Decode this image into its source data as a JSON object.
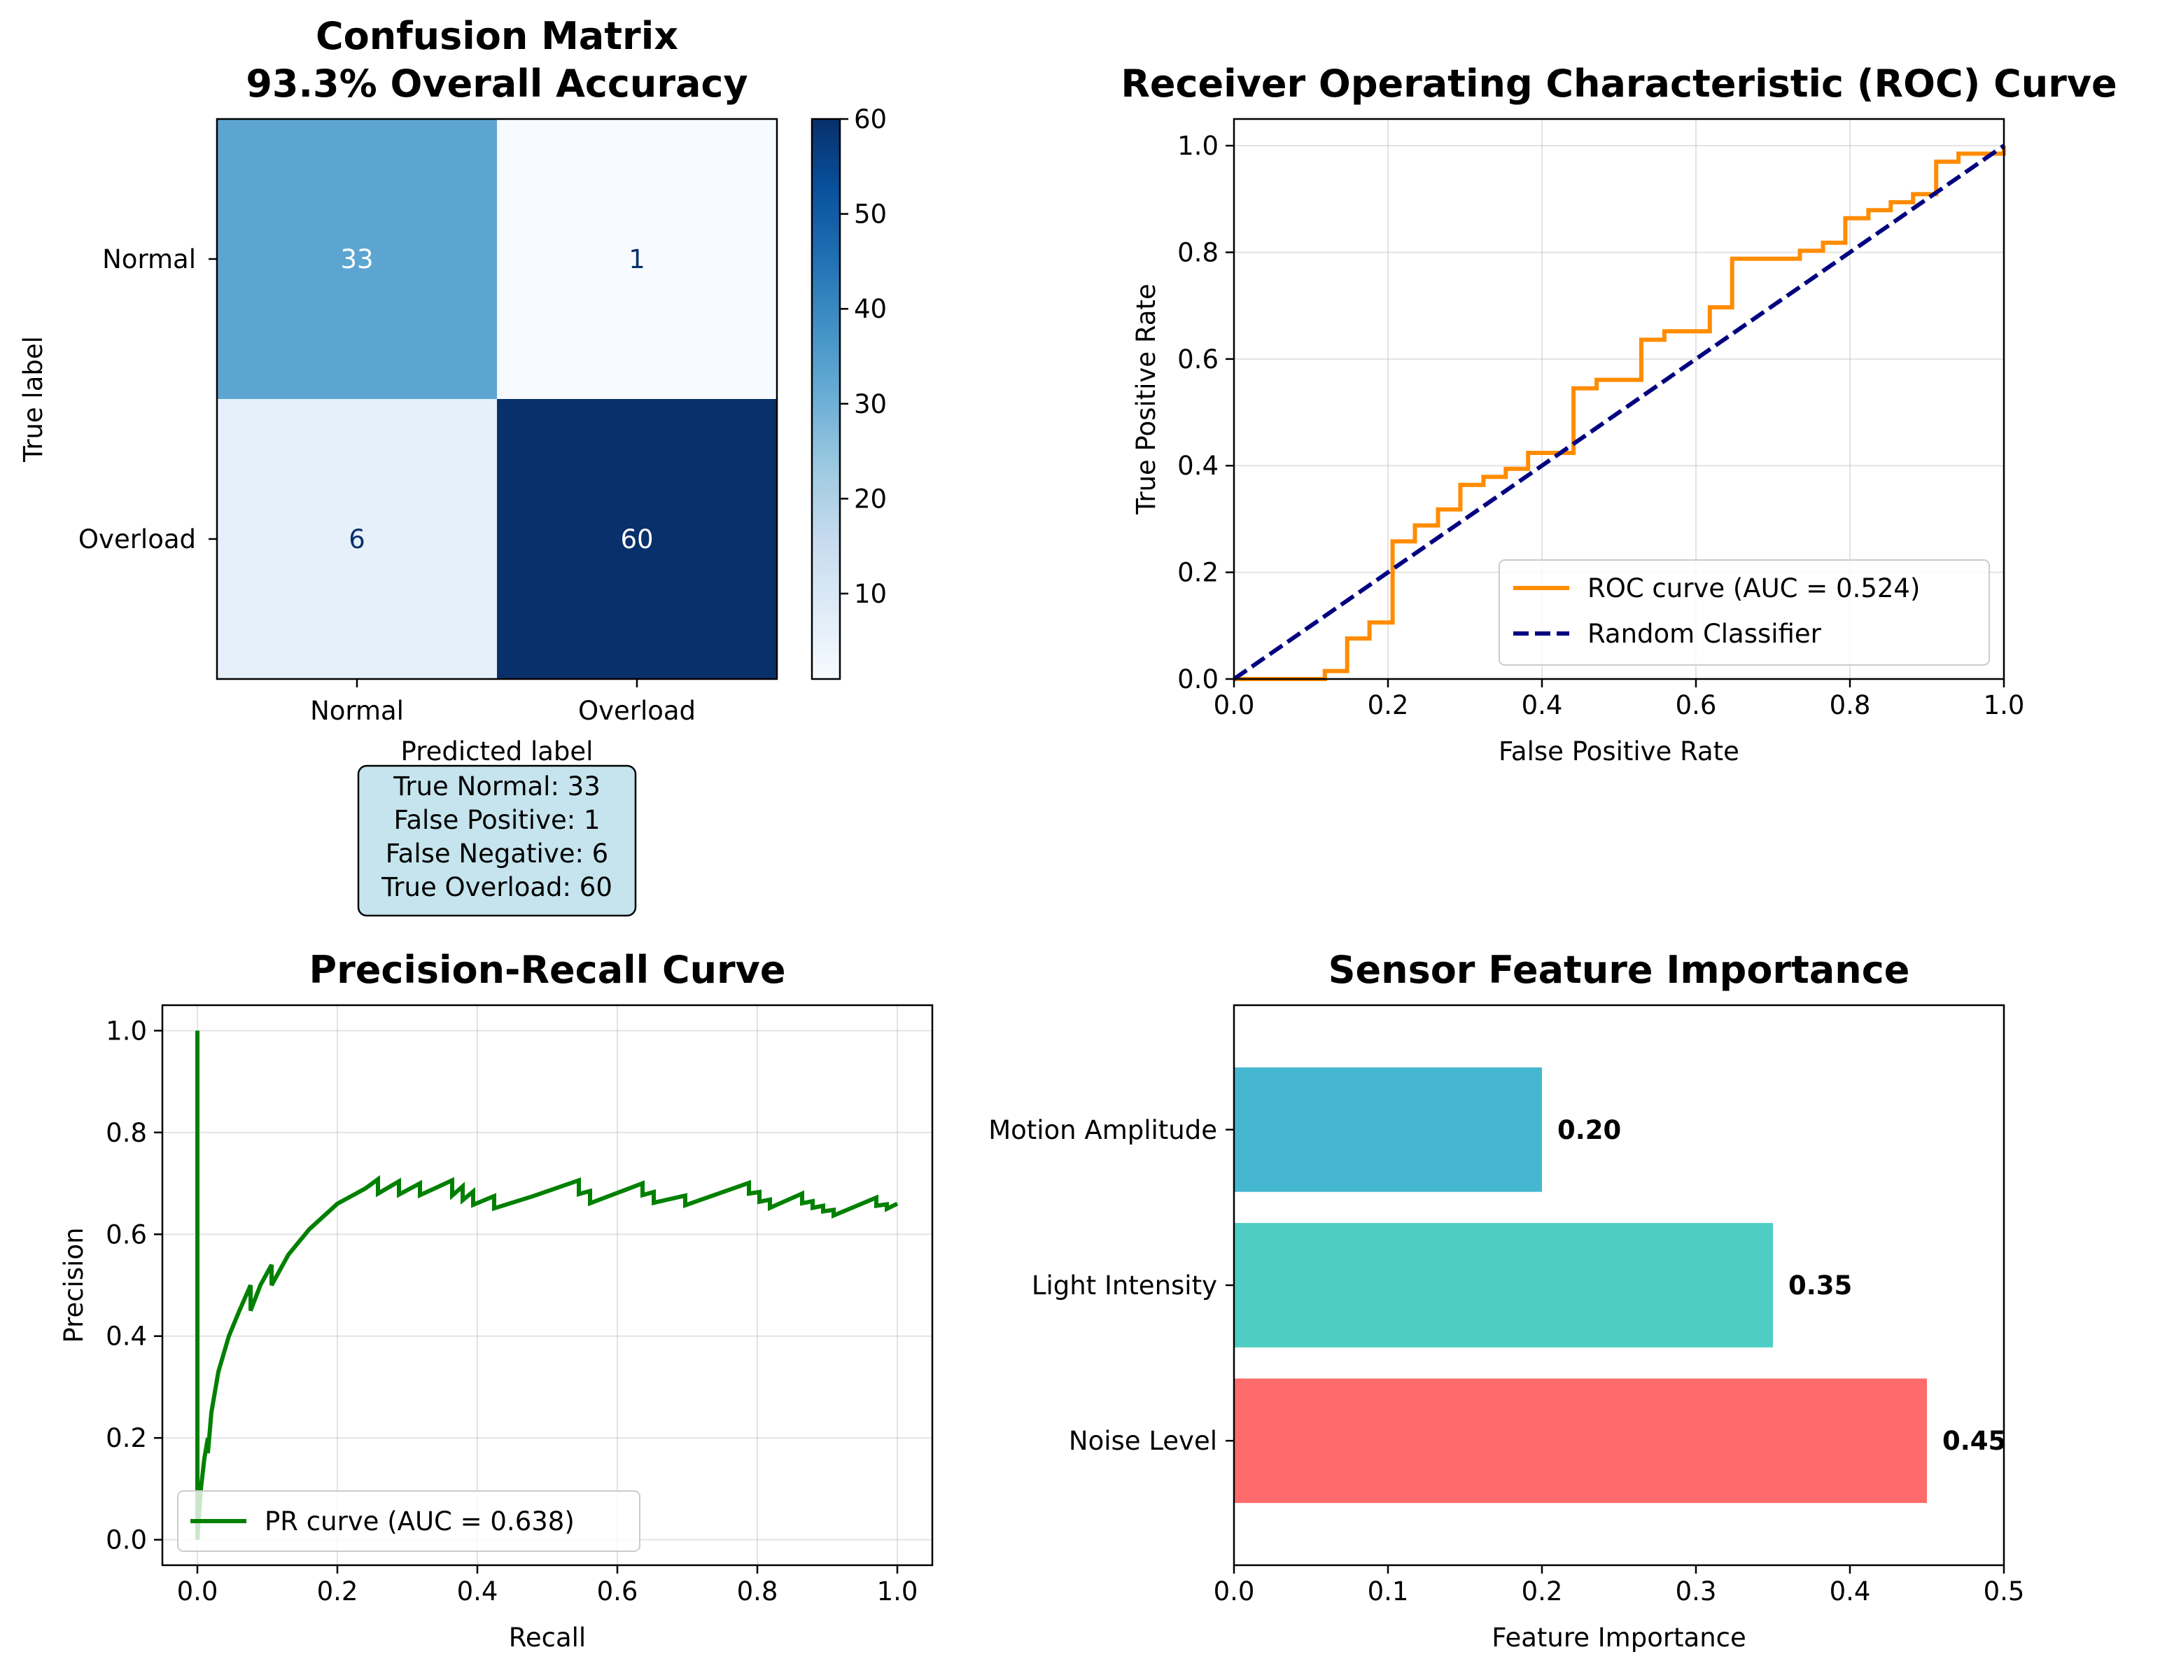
{
  "chart_data": [
    {
      "type": "heatmap",
      "title_line1": "Confusion Matrix",
      "title_line2": "93.3% Overall Accuracy",
      "xlabel": "Predicted label",
      "ylabel": "True label",
      "row_labels": [
        "Normal",
        "Overload"
      ],
      "col_labels": [
        "Normal",
        "Overload"
      ],
      "values": [
        [
          33,
          1
        ],
        [
          6,
          60
        ]
      ],
      "colormap": "Blues",
      "colorbar_ticks": [
        10,
        20,
        30,
        40,
        50,
        60
      ],
      "colorbar_range": [
        1,
        60
      ],
      "summary_box": [
        "True Normal: 33",
        "False Positive: 1",
        "False Negative: 6",
        "True Overload: 60"
      ],
      "summary_box_color": "#add8e6"
    },
    {
      "type": "line",
      "title": "Receiver Operating Characteristic (ROC) Curve",
      "xlabel": "False Positive Rate",
      "ylabel": "True Positive Rate",
      "xlim": [
        0,
        1
      ],
      "ylim": [
        0,
        1.05
      ],
      "xticks": [
        "0.0",
        "0.2",
        "0.4",
        "0.6",
        "0.8",
        "1.0"
      ],
      "yticks": [
        "0.0",
        "0.2",
        "0.4",
        "0.6",
        "0.8",
        "1.0"
      ],
      "grid": true,
      "legend_position": "lower-right",
      "series": [
        {
          "name": "ROC curve (AUC = 0.524)",
          "color": "#ff8c00",
          "style": "solid",
          "x": [
            0.0,
            0.118,
            0.118,
            0.147,
            0.147,
            0.176,
            0.176,
            0.206,
            0.206,
            0.235,
            0.235,
            0.265,
            0.265,
            0.294,
            0.294,
            0.324,
            0.324,
            0.353,
            0.353,
            0.382,
            0.382,
            0.441,
            0.441,
            0.471,
            0.471,
            0.529,
            0.529,
            0.559,
            0.559,
            0.618,
            0.618,
            0.647,
            0.647,
            0.735,
            0.735,
            0.765,
            0.765,
            0.794,
            0.794,
            0.824,
            0.824,
            0.853,
            0.853,
            0.882,
            0.882,
            0.912,
            0.912,
            0.941,
            0.941,
            1.0,
            1.0
          ],
          "y": [
            0.0,
            0.0,
            0.015,
            0.015,
            0.076,
            0.076,
            0.106,
            0.106,
            0.258,
            0.258,
            0.288,
            0.288,
            0.318,
            0.318,
            0.364,
            0.364,
            0.379,
            0.379,
            0.394,
            0.394,
            0.424,
            0.424,
            0.545,
            0.545,
            0.561,
            0.561,
            0.636,
            0.636,
            0.652,
            0.652,
            0.697,
            0.697,
            0.788,
            0.788,
            0.803,
            0.803,
            0.818,
            0.818,
            0.864,
            0.864,
            0.879,
            0.879,
            0.894,
            0.894,
            0.909,
            0.909,
            0.97,
            0.97,
            0.985,
            0.985,
            1.0
          ]
        },
        {
          "name": "Random Classifier",
          "color": "#000080",
          "style": "dashed",
          "x": [
            0,
            1
          ],
          "y": [
            0,
            1
          ]
        }
      ]
    },
    {
      "type": "line",
      "title": "Precision-Recall Curve",
      "xlabel": "Recall",
      "ylabel": "Precision",
      "xlim": [
        -0.05,
        1.05
      ],
      "ylim": [
        -0.05,
        1.05
      ],
      "xticks": [
        "0.0",
        "0.2",
        "0.4",
        "0.6",
        "0.8",
        "1.0"
      ],
      "yticks": [
        "0.0",
        "0.2",
        "0.4",
        "0.6",
        "0.8",
        "1.0"
      ],
      "grid": true,
      "legend_position": "lower-left",
      "series": [
        {
          "name": "PR curve (AUC = 0.638)",
          "color": "#008000",
          "style": "solid",
          "x": [
            0.0,
            0.0,
            0.0,
            0.005,
            0.01,
            0.015,
            0.015,
            0.02,
            0.03,
            0.045,
            0.06,
            0.076,
            0.076,
            0.09,
            0.106,
            0.106,
            0.13,
            0.16,
            0.2,
            0.24,
            0.258,
            0.258,
            0.288,
            0.288,
            0.318,
            0.318,
            0.364,
            0.364,
            0.379,
            0.379,
            0.394,
            0.394,
            0.424,
            0.424,
            0.48,
            0.545,
            0.545,
            0.561,
            0.561,
            0.636,
            0.636,
            0.652,
            0.652,
            0.697,
            0.697,
            0.788,
            0.788,
            0.803,
            0.803,
            0.818,
            0.818,
            0.864,
            0.864,
            0.879,
            0.879,
            0.894,
            0.894,
            0.909,
            0.909,
            0.97,
            0.97,
            0.985,
            0.985,
            1.0
          ],
          "y": [
            0.0,
            1.0,
            0.0,
            0.1,
            0.16,
            0.2,
            0.17,
            0.25,
            0.33,
            0.4,
            0.45,
            0.5,
            0.45,
            0.5,
            0.54,
            0.5,
            0.56,
            0.61,
            0.66,
            0.69,
            0.708,
            0.68,
            0.704,
            0.678,
            0.7,
            0.677,
            0.706,
            0.676,
            0.694,
            0.667,
            0.684,
            0.658,
            0.675,
            0.651,
            0.675,
            0.706,
            0.679,
            0.685,
            0.661,
            0.7,
            0.677,
            0.683,
            0.662,
            0.676,
            0.657,
            0.701,
            0.68,
            0.683,
            0.664,
            0.668,
            0.652,
            0.68,
            0.661,
            0.665,
            0.652,
            0.656,
            0.645,
            0.648,
            0.637,
            0.672,
            0.656,
            0.659,
            0.65,
            0.66
          ]
        }
      ]
    },
    {
      "type": "bar",
      "orientation": "horizontal",
      "title": "Sensor Feature Importance",
      "xlabel": "Feature Importance",
      "ylabel": "",
      "categories": [
        "Noise Level",
        "Light Intensity",
        "Motion Amplitude"
      ],
      "values": [
        0.45,
        0.35,
        0.2
      ],
      "value_labels": [
        "0.45",
        "0.35",
        "0.20"
      ],
      "colors": [
        "#ff6b6b",
        "#4ecdc4",
        "#45b7d1"
      ],
      "xlim": [
        0,
        0.5
      ],
      "xticks": [
        "0.0",
        "0.1",
        "0.2",
        "0.3",
        "0.4",
        "0.5"
      ],
      "grid": false
    }
  ]
}
